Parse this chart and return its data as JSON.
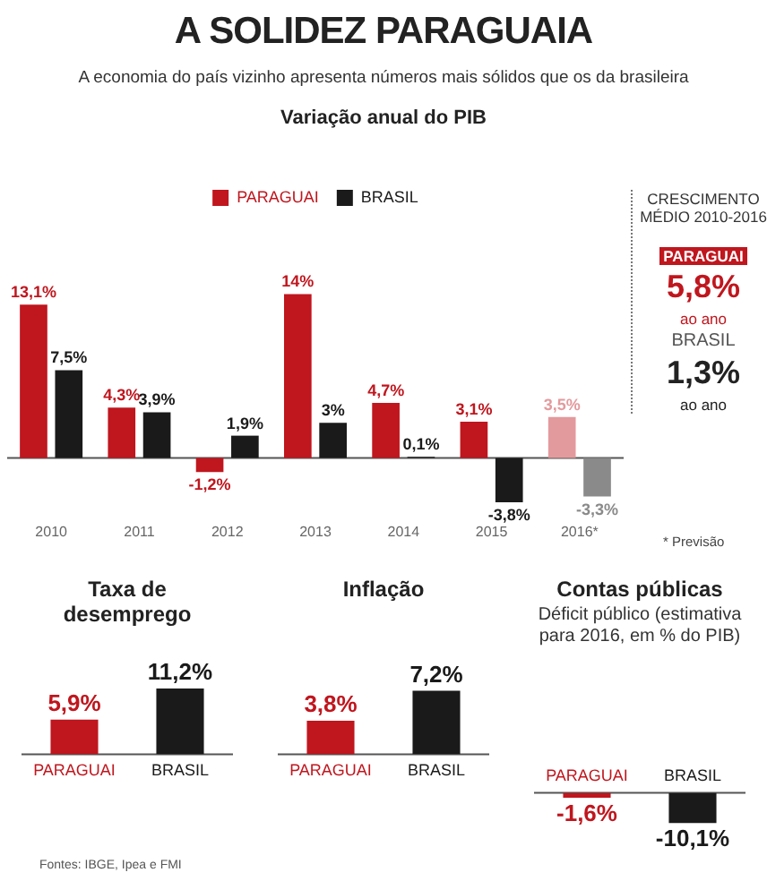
{
  "chart_data": [
    {
      "type": "bar",
      "title": "A SOLIDEZ PARAGUAIA",
      "subtitle": "A economia do país vizinho apresenta números mais sólidos que os da brasileira",
      "annotations": [
        "Variação anual do PIB",
        "* Previsão"
      ],
      "categories": [
        "2010",
        "2011",
        "2012",
        "2013",
        "2014",
        "2015",
        "2016*"
      ],
      "series": [
        {
          "name": "PARAGUAI",
          "color": "#c0161e",
          "colors": [
            "#c0161e",
            "#c0161e",
            "#c0161e",
            "#c0161e",
            "#c0161e",
            "#c0161e",
            "#e39a9d"
          ],
          "values": [
            13.1,
            4.3,
            -1.2,
            14,
            4.7,
            3.1,
            3.5
          ],
          "value_labels": [
            "13,1%",
            "4,3%",
            "-1,2%",
            "14%",
            "4,7%",
            "3,1%",
            "3,5%"
          ]
        },
        {
          "name": "BRASIL",
          "color": "#1a1a1a",
          "colors": [
            "#1a1a1a",
            "#1a1a1a",
            "#1a1a1a",
            "#1a1a1a",
            "#1a1a1a",
            "#1a1a1a",
            "#8a8a8a"
          ],
          "values": [
            7.5,
            3.9,
            1.9,
            3,
            0.1,
            -3.8,
            -3.3
          ],
          "value_labels": [
            "7,5%",
            "3,9%",
            "1,9%",
            "3%",
            "0,1%",
            "-3,8%",
            "-3,3%"
          ]
        }
      ],
      "tick_labels": "x",
      "grid": false,
      "legend": "top"
    },
    {
      "type": "other",
      "title": "CRESCIMENTO MÉDIO 2010-2016",
      "annotations": [
        "PARAGUAI",
        "5,8%",
        "ao ano",
        "BRASIL",
        "1,3%",
        "ao ano"
      ]
    },
    {
      "type": "bar",
      "title": "Taxa de desemprego",
      "annotations": [
        "Fontes: IBGE, Ipea e FMI"
      ],
      "categories": [
        "PARAGUAI",
        "BRASIL"
      ],
      "series": [
        {
          "colors": [
            "#c0161e",
            "#1a1a1a"
          ],
          "values": [
            5.9,
            11.2
          ],
          "value_labels": [
            "5,9%",
            "11,2%"
          ]
        }
      ],
      "tick_labels": "x",
      "grid": false,
      "legend": false
    },
    {
      "type": "bar",
      "title": "Inflação",
      "categories": [
        "PARAGUAI",
        "BRASIL"
      ],
      "series": [
        {
          "colors": [
            "#c0161e",
            "#1a1a1a"
          ],
          "values": [
            3.8,
            7.2
          ],
          "value_labels": [
            "3,8%",
            "7,2%"
          ]
        }
      ],
      "tick_labels": "x",
      "grid": false,
      "legend": false
    },
    {
      "type": "bar",
      "title": "Contas públicas",
      "subtitle": "Déficit público (estimativa para 2016, em % do PIB)",
      "categories": [
        "PARAGUAI",
        "BRASIL"
      ],
      "series": [
        {
          "colors": [
            "#c0161e",
            "#1a1a1a"
          ],
          "values": [
            -1.6,
            -10.1
          ],
          "value_labels": [
            "-1,6%",
            "-10,1%"
          ]
        }
      ],
      "tick_labels": "x",
      "grid": false,
      "legend": false
    }
  ]
}
